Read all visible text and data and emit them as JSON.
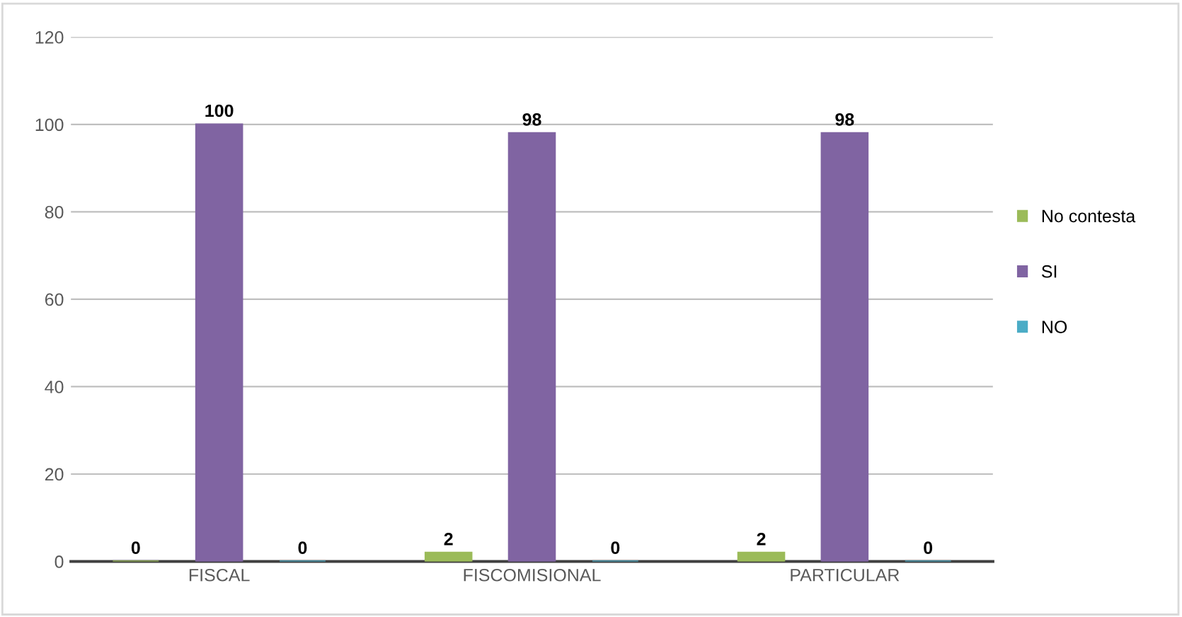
{
  "chart_data": {
    "type": "bar",
    "categories": [
      "FISCAL",
      "FISCOMISIONAL",
      "PARTICULAR"
    ],
    "series": [
      {
        "name": "No contesta",
        "color": "#9bbb59",
        "values": [
          0,
          2,
          2
        ]
      },
      {
        "name": "SI",
        "color": "#8064a2",
        "values": [
          100,
          98,
          98
        ]
      },
      {
        "name": "NO",
        "color": "#4bacc6",
        "values": [
          0,
          0,
          0
        ]
      }
    ],
    "ylim": [
      0,
      120
    ],
    "yticks": [
      0,
      20,
      40,
      60,
      80,
      100,
      120
    ],
    "grid": "y",
    "legend": "right",
    "data_labels": true
  }
}
